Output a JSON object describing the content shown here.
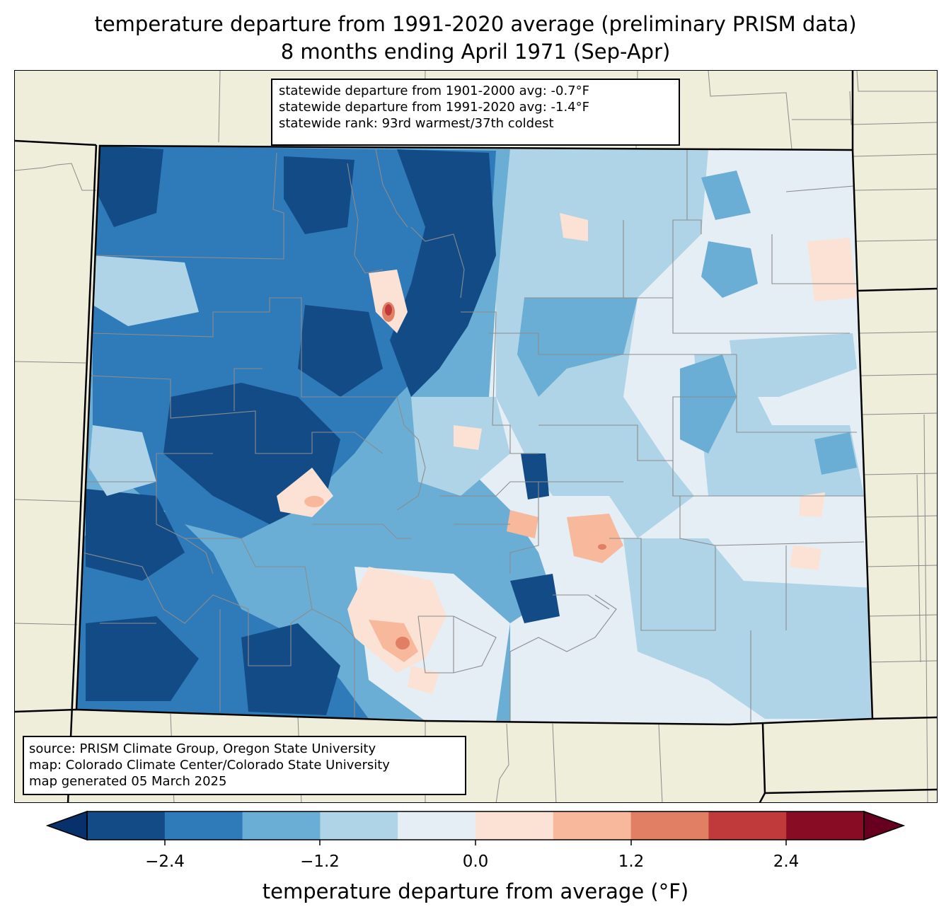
{
  "title": {
    "line1": "temperature departure from 1991-2020 average (preliminary PRISM data)",
    "line2": "8 months ending April 1971 (Sep-Apr)"
  },
  "stats": {
    "line1": "statewide departure from 1901-2000 avg: -0.7°F",
    "line2": "statewide departure from 1991-2020 avg: -1.4°F",
    "line3": "statewide rank: 93rd warmest/37th coldest"
  },
  "source": {
    "line1": "source: PRISM Climate Group, Oregon State University",
    "line2": "map: Colorado Climate Center/Colorado State University",
    "line3": "map generated 05 March 2025"
  },
  "colorbar": {
    "label": "temperature departure from average (°F)",
    "ticks": [
      "−2.4",
      "−1.2",
      "0.0",
      "1.2",
      "2.4"
    ],
    "colors": [
      "#08306b",
      "#134b87",
      "#2f7ab9",
      "#6aaed6",
      "#b0d4e7",
      "#e5eef5",
      "#fbe2d5",
      "#f7b89c",
      "#e17f65",
      "#c03a3b",
      "#870c24",
      "#67001f"
    ]
  },
  "map": {
    "state_fill_colors": {
      "darkest_blue": "#134b87",
      "dark_blue": "#2f7ab9",
      "mid_blue": "#6aaed6",
      "light_blue": "#b0d4e7",
      "pale": "#e5eef5",
      "light_red": "#fbe2d5",
      "salmon": "#f7b89c",
      "red": "#e17f65",
      "dark_red": "#c03a3b"
    }
  }
}
